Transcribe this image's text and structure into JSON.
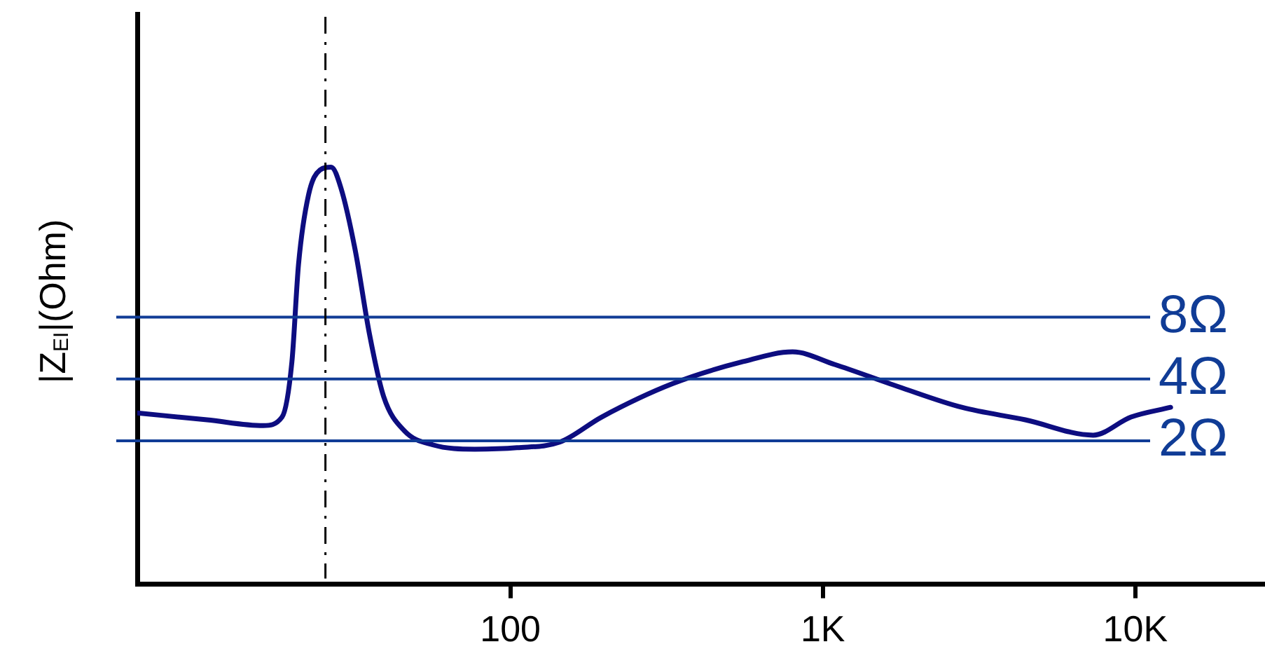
{
  "chart_data": {
    "type": "line",
    "ylabel": "|Z$_{EI}$|(Ohm)",
    "log": "xy",
    "tick_labels": "x",
    "grid": false,
    "legend": false,
    "marker": "none",
    "line_style": "solid",
    "x": [
      6.4,
      10.7,
      16.2,
      18.6,
      20.0,
      21.0,
      22.6,
      24.6,
      26.7,
      28.7,
      31.9,
      35.4,
      39.3,
      45.9,
      56.5,
      77,
      105,
      144,
      196,
      330,
      556,
      800,
      1090,
      1745,
      2785,
      4445,
      7330,
      9690,
      12970
    ],
    "series": [
      {
        "color": "#0d0d80",
        "values": [
          2.73,
          2.53,
          2.37,
          2.61,
          4.86,
          14.5,
          31.5,
          41.7,
          43.1,
          34.1,
          16.9,
          6.64,
          3.29,
          2.23,
          1.91,
          1.82,
          1.85,
          1.97,
          2.61,
          3.79,
          4.86,
          5.42,
          4.71,
          3.67,
          2.91,
          2.53,
          2.13,
          2.61,
          2.91
        ]
      }
    ],
    "xlim": [
      6.4,
      26000
    ],
    "ylim": [
      0.4,
      240
    ],
    "xticks": [
      {
        "value": 100,
        "label": "100"
      },
      {
        "value": 1000,
        "label": "1K"
      },
      {
        "value": 10000,
        "label": "10K"
      }
    ],
    "ref_lines": [
      {
        "axis": "y",
        "value": 8,
        "label": "8Ω",
        "color": "#103c96"
      },
      {
        "axis": "y",
        "value": 4,
        "label": "4Ω",
        "color": "#103c96"
      },
      {
        "axis": "y",
        "value": 2,
        "label": "2Ω",
        "color": "#103c96"
      },
      {
        "axis": "x",
        "value": 25.6,
        "label": null,
        "color": "#000000",
        "line_style": "dashed"
      }
    ]
  }
}
